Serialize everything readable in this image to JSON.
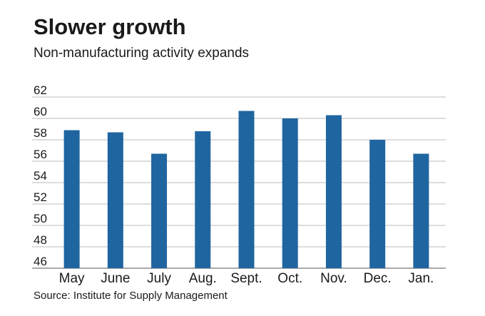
{
  "chart_data": {
    "type": "bar",
    "title": "Slower growth",
    "subtitle": "Non-manufacturing activity expands",
    "source": "Source: Institute for Supply Management",
    "categories": [
      "May",
      "June",
      "July",
      "Aug.",
      "Sept.",
      "Oct.",
      "Nov.",
      "Dec.",
      "Jan."
    ],
    "values": [
      58.9,
      58.7,
      56.7,
      58.8,
      60.7,
      60.0,
      60.3,
      58.0,
      56.7
    ],
    "color": "#1f65a0",
    "ylim": [
      46,
      62
    ],
    "yticks": [
      46,
      48,
      50,
      52,
      54,
      56,
      58,
      60,
      62
    ],
    "grid": true
  }
}
